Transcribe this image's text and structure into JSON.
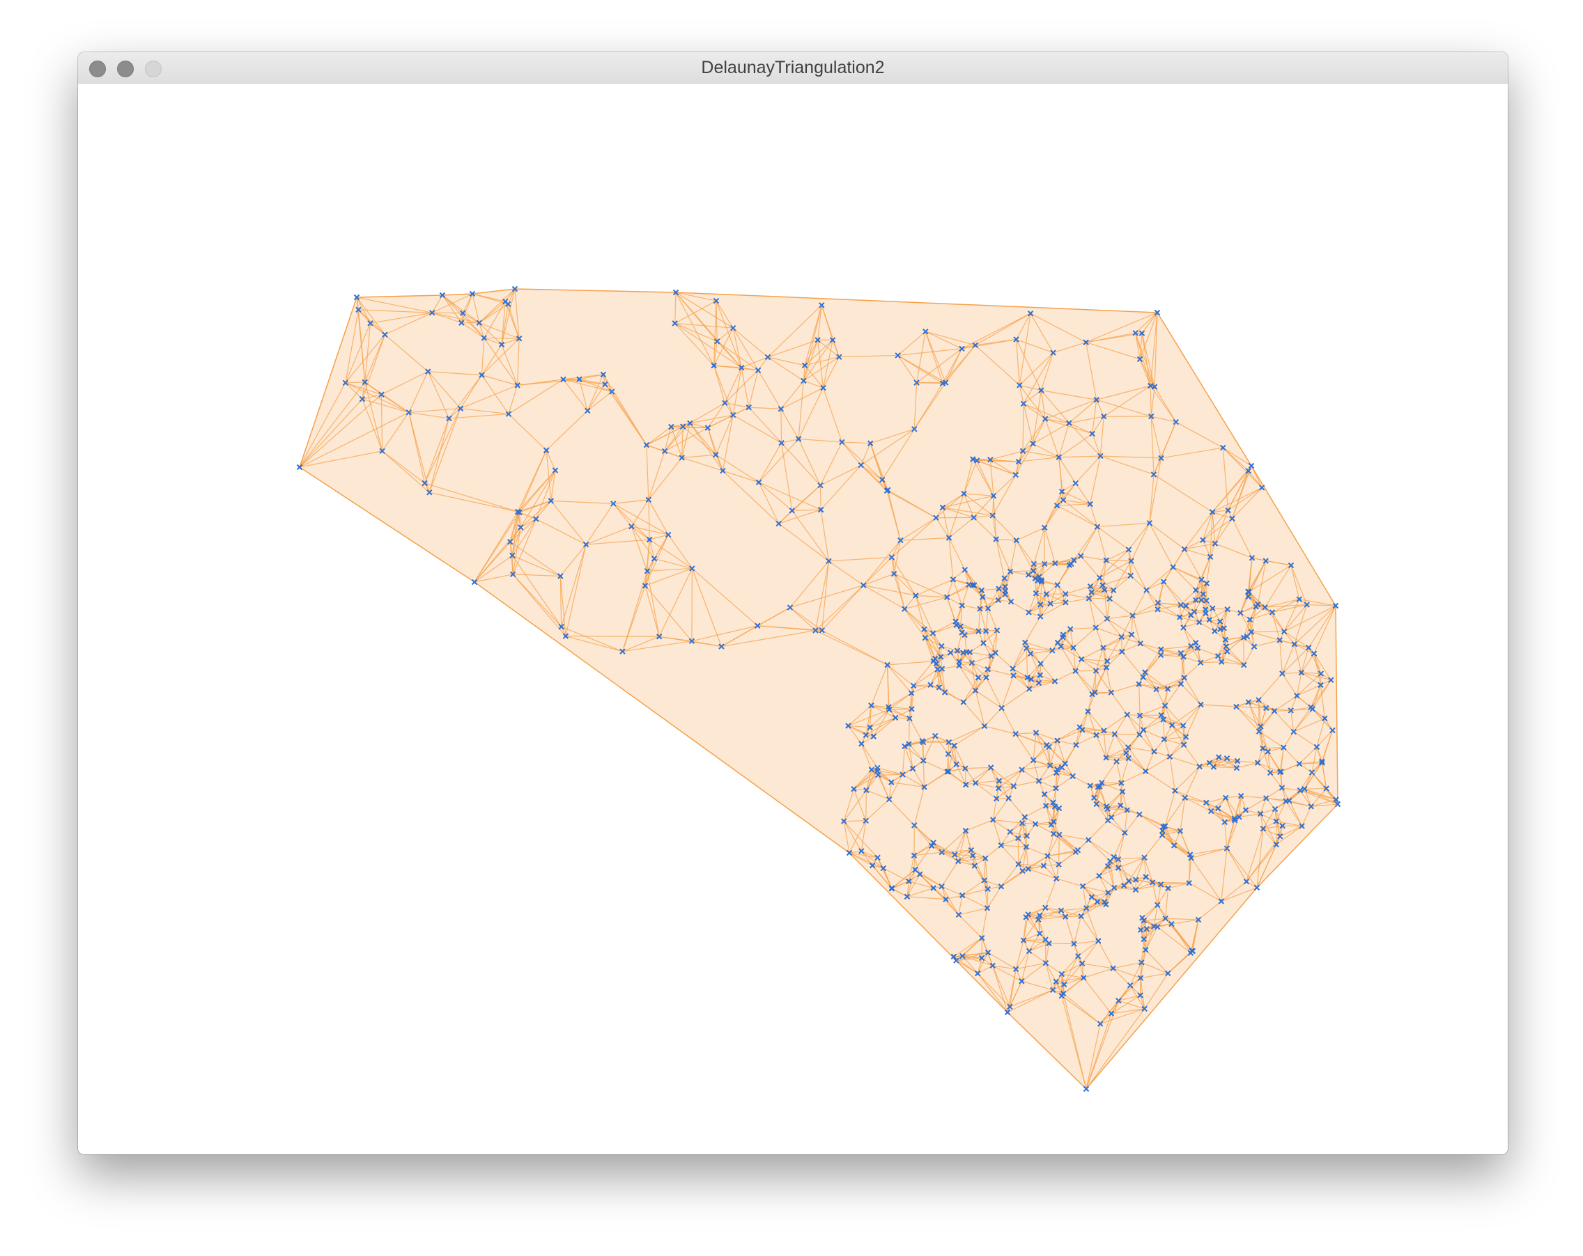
{
  "window": {
    "title": "DelaunayTriangulation2"
  },
  "controls": {
    "close_icon": "close-icon",
    "minimize_icon": "minimize-icon",
    "zoom_icon": "zoom-icon"
  },
  "scene": {
    "type": "delaunay-triangulation",
    "fill_color": "#fde8d4",
    "edge_color": "#f5a14a",
    "point_color": "#2c6fd6",
    "point_marker": "x"
  }
}
